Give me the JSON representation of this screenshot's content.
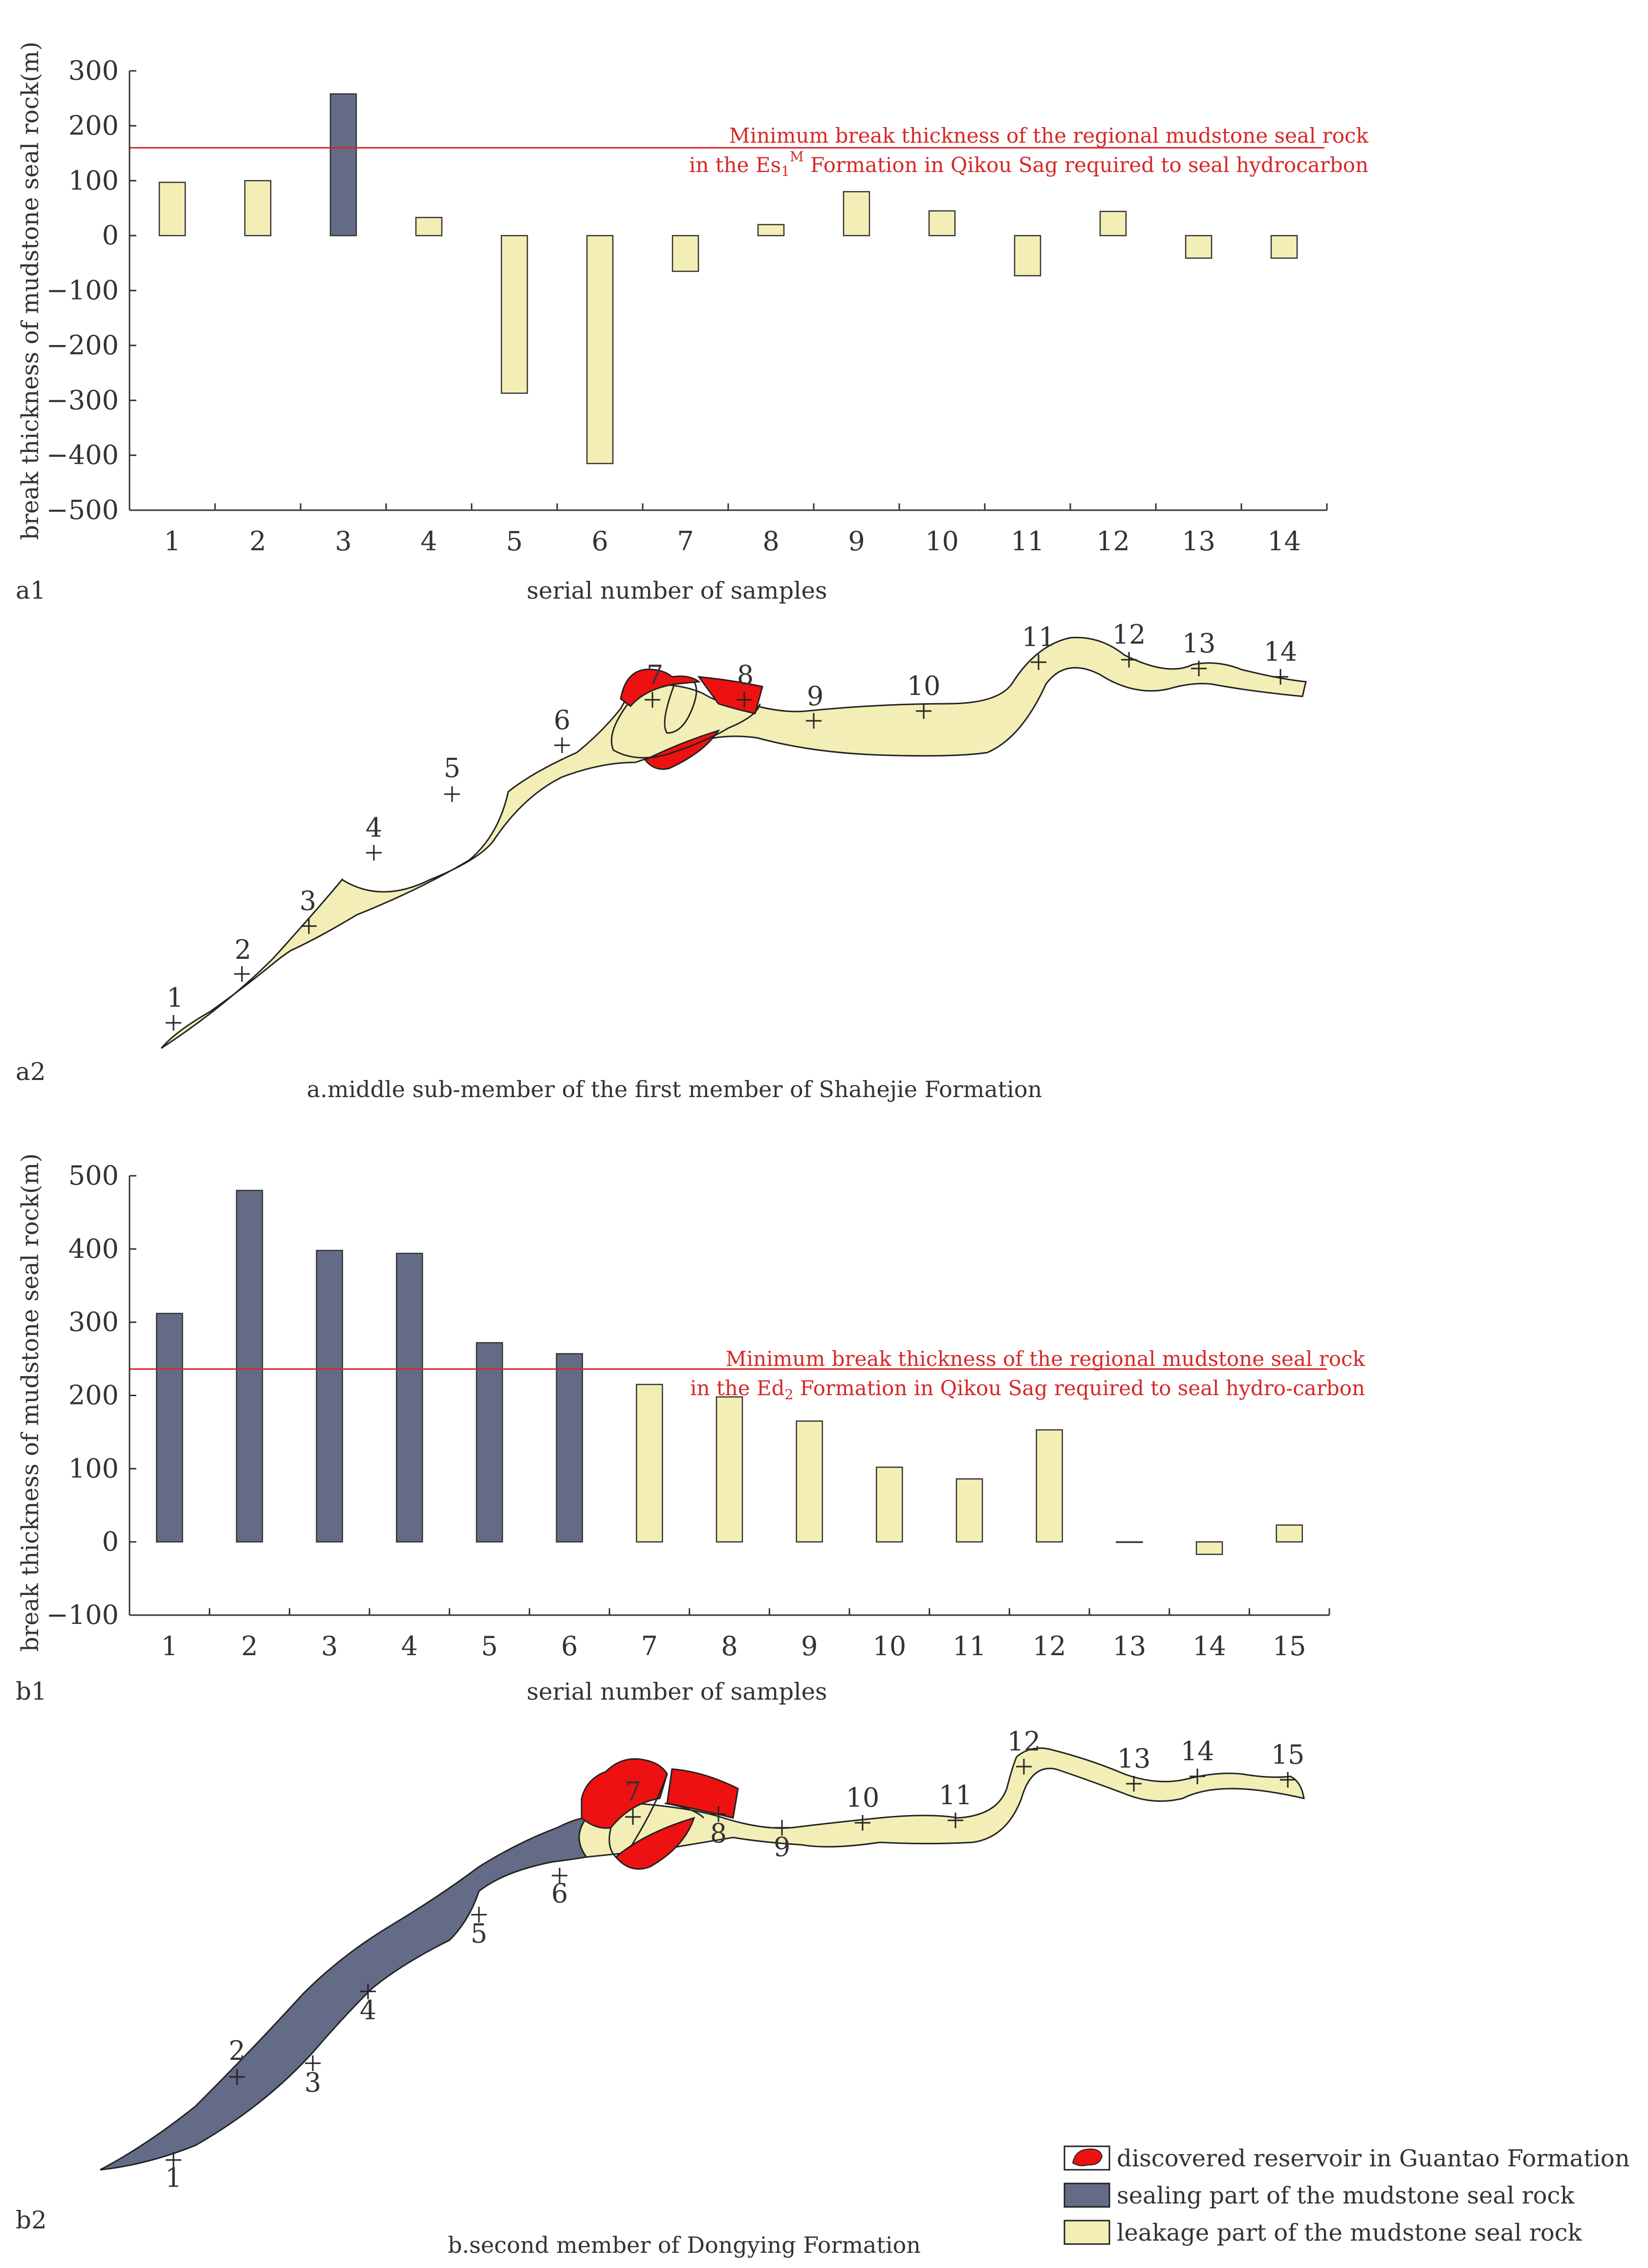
{
  "colors": {
    "sealing": "#636b87",
    "leakage": "#f3eeb5",
    "reservoir": "#ee1111",
    "threshold": "#d62828",
    "axis": "#333333"
  },
  "chart_data": [
    {
      "type": "bar",
      "panel": "a1",
      "ylabel": "break thickness of mudstone seal rock(m)",
      "xlabel": "serial number of samples",
      "ylim": [
        -500,
        300
      ],
      "yticks": [
        "300",
        "200",
        "100",
        "0",
        "−100",
        "−200",
        "−300",
        "−400",
        "−500"
      ],
      "categories": [
        "1",
        "2",
        "3",
        "4",
        "5",
        "6",
        "7",
        "8",
        "9",
        "10",
        "11",
        "12",
        "13",
        "14"
      ],
      "values": [
        97,
        100,
        258,
        33,
        -287,
        -415,
        -65,
        20,
        80,
        45,
        -73,
        44,
        -41,
        -41
      ],
      "part": [
        "leakage",
        "leakage",
        "sealing",
        "leakage",
        "leakage",
        "leakage",
        "leakage",
        "leakage",
        "leakage",
        "leakage",
        "leakage",
        "leakage",
        "leakage",
        "leakage"
      ],
      "threshold": 160,
      "threshold_line1": "Minimum break thickness of the regional mudstone seal rock",
      "threshold_line2_pre": "in the Es",
      "threshold_sub": "1",
      "threshold_sup": "M",
      "threshold_line2_post": " Formation in Qikou Sag required to seal hydrocarbon"
    },
    {
      "type": "bar",
      "panel": "b1",
      "ylabel": "break thickness of mudstone seal rock(m)",
      "xlabel": "serial number of samples",
      "ylim": [
        -100,
        500
      ],
      "yticks": [
        "500",
        "400",
        "300",
        "200",
        "100",
        "0",
        "−100"
      ],
      "categories": [
        "1",
        "2",
        "3",
        "4",
        "5",
        "6",
        "7",
        "8",
        "9",
        "10",
        "11",
        "12",
        "13",
        "14",
        "15"
      ],
      "values": [
        312,
        480,
        398,
        394,
        272,
        257,
        215,
        198,
        165,
        102,
        86,
        153,
        0,
        -17,
        23
      ],
      "part": [
        "sealing",
        "sealing",
        "sealing",
        "sealing",
        "sealing",
        "sealing",
        "leakage",
        "leakage",
        "leakage",
        "leakage",
        "leakage",
        "leakage",
        "leakage",
        "leakage",
        "leakage"
      ],
      "threshold": 236,
      "threshold_line1": "Minimum break thickness of the regional mudstone seal rock",
      "threshold_line2_pre": "in the Ed",
      "threshold_sub": "2",
      "threshold_line2_post": " Formation in Qikou Sag required to seal hydro-carbon"
    }
  ],
  "panel_labels": {
    "a1": "a1",
    "a2": "a2",
    "b1": "b1",
    "b2": "b2"
  },
  "captions": {
    "a": "a.middle sub-member of the first member of Shahejie Formation",
    "b": "b.second member of Dongying Formation"
  },
  "map_a": {
    "points": [
      "1",
      "2",
      "3",
      "4",
      "5",
      "6",
      "7",
      "8",
      "9",
      "10",
      "11",
      "12",
      "13",
      "14"
    ]
  },
  "map_b": {
    "points": [
      "1",
      "2",
      "3",
      "4",
      "5",
      "6",
      "7",
      "8",
      "9",
      "10",
      "11",
      "12",
      "13",
      "14",
      "15"
    ]
  },
  "legend": {
    "reservoir": "discovered reservoir in Guantao Formation",
    "sealing": "sealing part of the mudstone seal rock",
    "leakage": "leakage part of the mudstone seal rock"
  }
}
